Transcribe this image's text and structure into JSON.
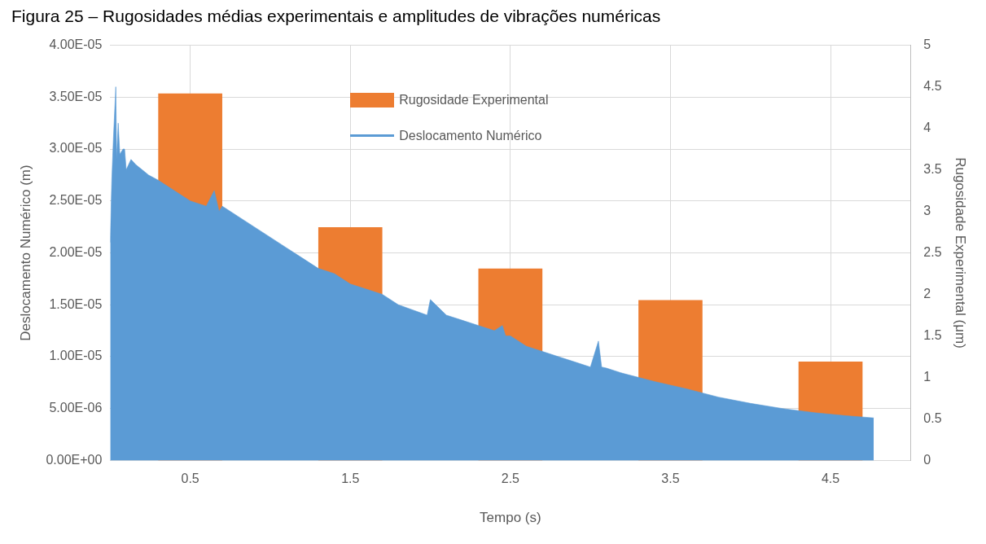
{
  "chart_data": {
    "type": "bar",
    "title": "Figura 25 – Rugosidades médias experimentais e amplitudes de vibrações numéricas",
    "xlabel": "Tempo (s)",
    "ylabel": "Deslocamento Numérico (m)",
    "y2label": "Rugosidade Experimental (μm)",
    "x": [
      0.5,
      1.5,
      2.5,
      3.5,
      4.5
    ],
    "series": [
      {
        "name": "Rugosidade Experimental",
        "axis": "y2",
        "color": "#ed7d31",
        "values": [
          4.42,
          2.81,
          2.31,
          1.93,
          1.19
        ]
      },
      {
        "name": "Deslocamento Numérico",
        "type": "area",
        "color": "#5b9bd5",
        "x": [
          0,
          0.01,
          0.02,
          0.035,
          0.04,
          0.05,
          0.06,
          0.08,
          0.09,
          0.1,
          0.13,
          0.16,
          0.2,
          0.24,
          0.3,
          0.4,
          0.5,
          0.6,
          0.65,
          0.68,
          0.7,
          0.8,
          0.9,
          1.0,
          1.1,
          1.2,
          1.3,
          1.4,
          1.5,
          1.6,
          1.7,
          1.8,
          1.98,
          2.0,
          2.1,
          2.2,
          2.3,
          2.4,
          2.45,
          2.47,
          2.5,
          2.6,
          2.7,
          2.8,
          2.9,
          3.0,
          3.05,
          3.07,
          3.1,
          3.2,
          3.4,
          3.6,
          3.8,
          4.0,
          4.2,
          4.4,
          4.6,
          4.77
        ],
        "values": [
          2.1e-05,
          2.7e-05,
          3.1e-05,
          3.6e-05,
          2.9e-05,
          3.25e-05,
          2.95e-05,
          3e-05,
          3e-05,
          2.8e-05,
          2.9e-05,
          2.85e-05,
          2.8e-05,
          2.75e-05,
          2.7e-05,
          2.6e-05,
          2.5e-05,
          2.45e-05,
          2.6e-05,
          2.4e-05,
          2.45e-05,
          2.35e-05,
          2.25e-05,
          2.15e-05,
          2.05e-05,
          1.95e-05,
          1.85e-05,
          1.8e-05,
          1.7e-05,
          1.65e-05,
          1.6e-05,
          1.5e-05,
          1.4e-05,
          1.55e-05,
          1.4e-05,
          1.35e-05,
          1.3e-05,
          1.25e-05,
          1.3e-05,
          1.2e-05,
          1.2e-05,
          1.1e-05,
          1.05e-05,
          1e-05,
          9.5e-06,
          9e-06,
          1.15e-05,
          9e-06,
          8.9e-06,
          8.4e-06,
          7.6e-06,
          6.9e-06,
          6.1e-06,
          5.5e-06,
          5e-06,
          4.6e-06,
          4.3e-06,
          4.1e-06
        ]
      }
    ],
    "xlim": [
      0,
      5
    ],
    "xticks": [
      0.5,
      1.5,
      2.5,
      3.5,
      4.5
    ],
    "ylim": [
      0,
      4e-05
    ],
    "yticks": [
      {
        "value": 0,
        "label": "0.00E+00"
      },
      {
        "value": 5e-06,
        "label": "5.00E-06"
      },
      {
        "value": 1e-05,
        "label": "1.00E-05"
      },
      {
        "value": 1.5e-05,
        "label": "1.50E-05"
      },
      {
        "value": 2e-05,
        "label": "2.00E-05"
      },
      {
        "value": 2.5e-05,
        "label": "2.50E-05"
      },
      {
        "value": 3e-05,
        "label": "3.00E-05"
      },
      {
        "value": 3.5e-05,
        "label": "3.50E-05"
      },
      {
        "value": 4e-05,
        "label": "4.00E-05"
      }
    ],
    "y2lim": [
      0,
      5
    ],
    "y2ticks": [
      0,
      0.5,
      1,
      1.5,
      2,
      2.5,
      3,
      3.5,
      4,
      4.5,
      5
    ],
    "grid": true,
    "legend": "top"
  }
}
